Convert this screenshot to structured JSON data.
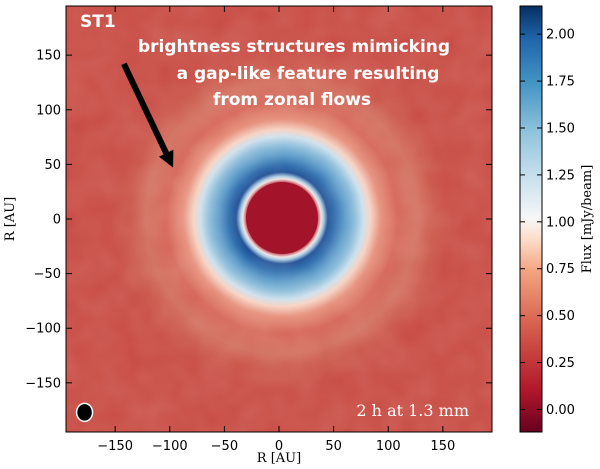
{
  "chart_data": {
    "type": "heatmap",
    "panel_label": "ST1",
    "annotation_lines": [
      "brightness structures mimicking",
      "a gap-like feature resulting",
      "from zonal flows"
    ],
    "observation_label": "2 h at 1.3 mm",
    "xlabel": "R [AU]",
    "ylabel": "R [AU]",
    "xlim": [
      -195,
      195
    ],
    "ylim": [
      -195,
      195
    ],
    "x_ticks": [
      -150,
      -100,
      -50,
      0,
      50,
      100,
      150
    ],
    "x_tick_labels": [
      "−150",
      "−100",
      "−50",
      "0",
      "50",
      "100",
      "150"
    ],
    "y_ticks": [
      150,
      100,
      50,
      0,
      -50,
      -100,
      -150
    ],
    "y_tick_labels": [
      "150",
      "100",
      "50",
      "0",
      "−50",
      "−100",
      "−150"
    ],
    "colorbar": {
      "label": "Flux [mJy/beam]",
      "range": [
        -0.12,
        2.15
      ],
      "ticks": [
        0.0,
        0.25,
        0.5,
        0.75,
        1.0,
        1.25,
        1.5,
        1.75,
        2.0
      ],
      "tick_labels": [
        "0.00",
        "0.25",
        "0.50",
        "0.75",
        "1.00",
        "1.25",
        "1.50",
        "1.75",
        "2.00"
      ],
      "colormap": "RdBu"
    },
    "features": {
      "inner_cavity_radius_au": 42,
      "bright_ring_peak_radius_au": 50,
      "outer_ring_edge_radius_au": 90,
      "background_flux": 0.4,
      "ring_peak_flux": 2.15,
      "cavity_flux": -0.05
    },
    "arrow": {
      "from": [
        -142,
        142
      ],
      "to": [
        -97,
        47
      ]
    },
    "beam_center_au": [
      -178,
      -177
    ]
  },
  "colors": {
    "background_red": "#c43d3e",
    "ring_blue": "#1e58a0",
    "annotation_text": "#ffffff",
    "arrow": "#000000"
  }
}
